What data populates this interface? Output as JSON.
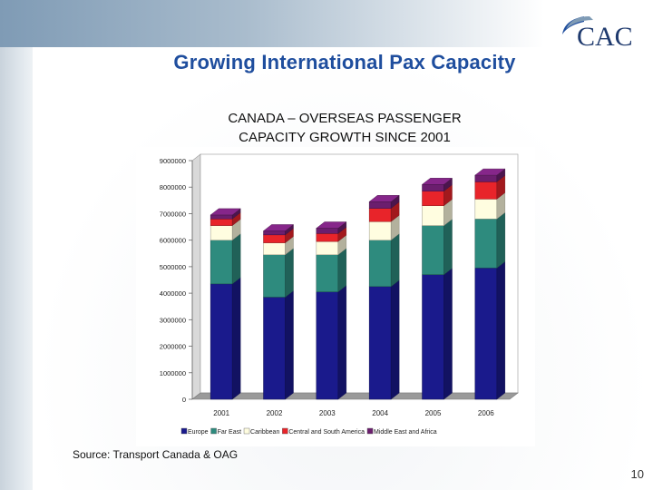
{
  "slide": {
    "logo_text": "CAC",
    "title": "Growing International Pax Capacity",
    "source": "Source: Transport Canada & OAG",
    "page_number": "10"
  },
  "chart_data": {
    "type": "bar",
    "stacked": true,
    "title": "CANADA – OVERSEAS PASSENGER\nCAPACITY GROWTH SINCE 2001",
    "xlabel": "",
    "ylabel": "",
    "categories": [
      "2001",
      "2002",
      "2003",
      "2004",
      "2005",
      "2006"
    ],
    "yticks": [
      "0",
      "1000000",
      "2000000",
      "3000000",
      "4000000",
      "5000000",
      "6000000",
      "7000000",
      "8000000",
      "9000000"
    ],
    "ylim": [
      0,
      9000000
    ],
    "grid": false,
    "legend_position": "bottom",
    "series": [
      {
        "name": "Europe",
        "color": "#1a1a8c",
        "values": [
          4350000,
          3850000,
          4050000,
          4250000,
          4700000,
          4950000
        ]
      },
      {
        "name": "Far East",
        "color": "#2e8b7e",
        "values": [
          1650000,
          1600000,
          1400000,
          1750000,
          1850000,
          1850000
        ]
      },
      {
        "name": "Caribbean",
        "color": "#fffde0",
        "values": [
          550000,
          450000,
          500000,
          700000,
          750000,
          750000
        ]
      },
      {
        "name": "Central and South America",
        "color": "#e8242a",
        "values": [
          250000,
          300000,
          300000,
          500000,
          550000,
          650000
        ]
      },
      {
        "name": "Middle East and Africa",
        "color": "#6b1e6e",
        "values": [
          150000,
          150000,
          200000,
          250000,
          250000,
          250000
        ]
      }
    ]
  }
}
